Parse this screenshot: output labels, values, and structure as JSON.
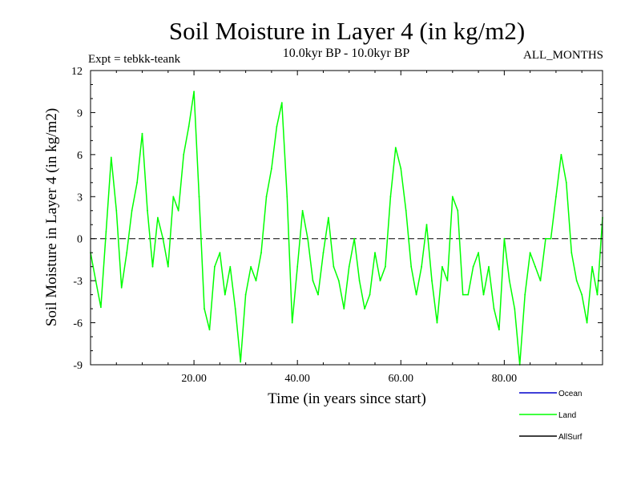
{
  "chart_data": {
    "type": "line",
    "title": "Soil Moisture in Layer 4 (in kg/m2)",
    "subtitle_left": "Expt = tebkk-teank",
    "subtitle_center": "10.0kyr BP - 10.0kyr BP",
    "subtitle_right": "ALL_MONTHS",
    "xlabel": "Time (in years since start)",
    "ylabel": "Soil Moisture in Layer 4 (in kg/m2)",
    "xlim": [
      0,
      99
    ],
    "ylim": [
      -9,
      12
    ],
    "xticks": [
      20,
      40,
      60,
      80
    ],
    "xtick_labels": [
      "20.00",
      "40.00",
      "60.00",
      "80.00"
    ],
    "yticks": [
      -9,
      -6,
      -3,
      0,
      3,
      6,
      9,
      12
    ],
    "ytick_labels": [
      "-9",
      "-6",
      "-3",
      "0",
      "3",
      "6",
      "9",
      "12"
    ],
    "zero_line": true,
    "legend": [
      {
        "name": "Ocean",
        "color": "#0000cc"
      },
      {
        "name": "Land",
        "color": "#00ff00"
      },
      {
        "name": "AllSurf",
        "color": "#000000"
      }
    ],
    "series": [
      {
        "name": "Land",
        "color": "#00ff00",
        "x": [
          0,
          1,
          2,
          3,
          4,
          5,
          6,
          7,
          8,
          9,
          10,
          11,
          12,
          13,
          14,
          15,
          16,
          17,
          18,
          19,
          20,
          21,
          22,
          23,
          24,
          25,
          26,
          27,
          28,
          29,
          30,
          31,
          32,
          33,
          34,
          35,
          36,
          37,
          38,
          39,
          40,
          41,
          42,
          43,
          44,
          45,
          46,
          47,
          48,
          49,
          50,
          51,
          52,
          53,
          54,
          55,
          56,
          57,
          58,
          59,
          60,
          61,
          62,
          63,
          64,
          65,
          66,
          67,
          68,
          69,
          70,
          71,
          72,
          73,
          74,
          75,
          76,
          77,
          78,
          79,
          80,
          81,
          82,
          83,
          84,
          85,
          86,
          87,
          88,
          89,
          90,
          91,
          92,
          93,
          94,
          95,
          96,
          97,
          98,
          99
        ],
        "values": [
          -1,
          -3,
          -4.9,
          0.5,
          5.8,
          2,
          -3.5,
          -1,
          2,
          4,
          7.5,
          2,
          -2,
          1.5,
          0,
          -2,
          3,
          2,
          6,
          8,
          10.5,
          3,
          -5,
          -6.5,
          -2,
          -1,
          -4,
          -2,
          -5,
          -8.8,
          -4,
          -2,
          -3,
          -1,
          3,
          5,
          8,
          9.7,
          3,
          -6,
          -2,
          2,
          0,
          -3,
          -4,
          -1,
          1.5,
          -2,
          -3,
          -5,
          -2,
          0,
          -3,
          -5,
          -4,
          -1,
          -3,
          -2,
          3,
          6.5,
          5,
          2,
          -2,
          -4,
          -2,
          1,
          -3,
          -6,
          -2,
          -3,
          3,
          2,
          -4,
          -4,
          -2,
          -1,
          -4,
          -2,
          -5,
          -6.5,
          0,
          -3,
          -5,
          -9,
          -4,
          -1,
          -2,
          -3,
          0,
          0,
          3,
          6,
          4,
          -1,
          -3,
          -4,
          -6,
          -2,
          -4,
          1.5
        ]
      }
    ]
  }
}
